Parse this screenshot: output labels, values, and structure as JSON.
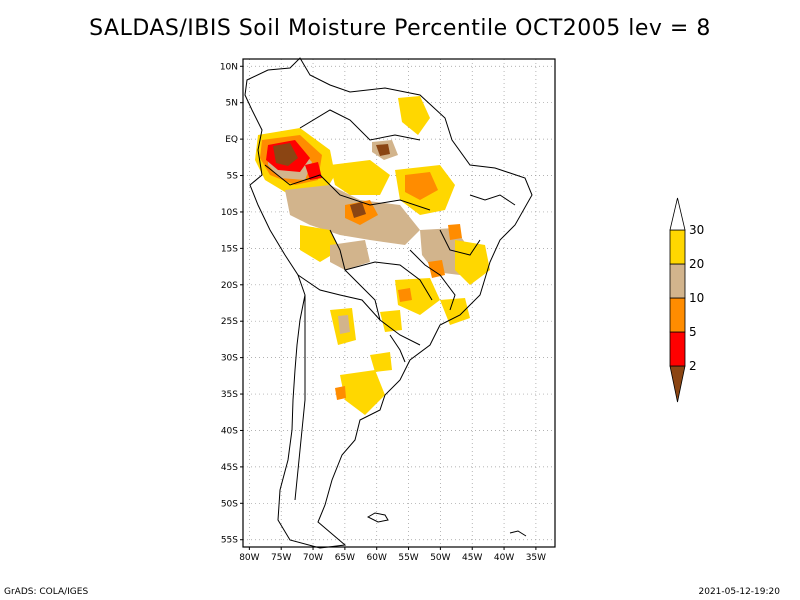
{
  "title": "SALDAS/IBIS Soil Moisture Percentile OCT2005 lev = 8",
  "footer": {
    "left": "GrADS: COLA/IGES",
    "right": "2021-05-12-19:20"
  },
  "map": {
    "lon_range": [
      -81,
      -32
    ],
    "lat_range": [
      -56,
      11
    ],
    "lat_ticks": [
      {
        "value": 10,
        "label": "10N"
      },
      {
        "value": 5,
        "label": "5N"
      },
      {
        "value": 0,
        "label": "EQ"
      },
      {
        "value": -5,
        "label": "5S"
      },
      {
        "value": -10,
        "label": "10S"
      },
      {
        "value": -15,
        "label": "15S"
      },
      {
        "value": -20,
        "label": "20S"
      },
      {
        "value": -25,
        "label": "25S"
      },
      {
        "value": -30,
        "label": "30S"
      },
      {
        "value": -35,
        "label": "35S"
      },
      {
        "value": -40,
        "label": "40S"
      },
      {
        "value": -45,
        "label": "45S"
      },
      {
        "value": -50,
        "label": "50S"
      },
      {
        "value": -55,
        "label": "55S"
      }
    ],
    "lon_ticks": [
      {
        "value": -80,
        "label": "80W"
      },
      {
        "value": -75,
        "label": "75W"
      },
      {
        "value": -70,
        "label": "70W"
      },
      {
        "value": -65,
        "label": "65W"
      },
      {
        "value": -60,
        "label": "60W"
      },
      {
        "value": -55,
        "label": "55W"
      },
      {
        "value": -50,
        "label": "50W"
      },
      {
        "value": -45,
        "label": "45W"
      },
      {
        "value": -40,
        "label": "40W"
      },
      {
        "value": -35,
        "label": "35W"
      }
    ],
    "grid": true
  },
  "legend": {
    "levels": [
      "2",
      "5",
      "10",
      "20",
      "30"
    ],
    "colors": [
      "#8b4513",
      "#ff0000",
      "#ff8c00",
      "#d2b48c",
      "#ffd700",
      "#ffffff"
    ]
  }
}
